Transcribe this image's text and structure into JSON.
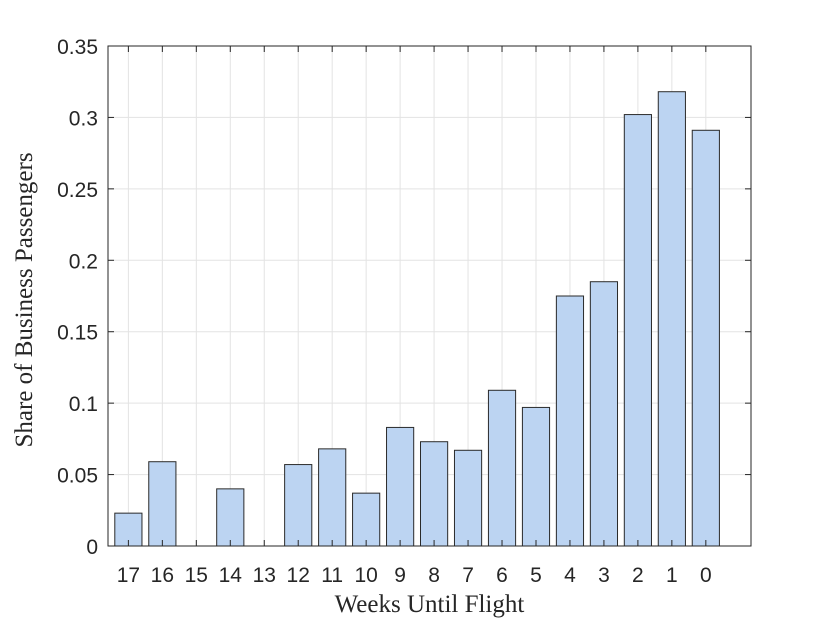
{
  "chart_data": {
    "type": "bar",
    "title": "",
    "xlabel": "Weeks Until Flight",
    "ylabel": "Share of Business Passengers",
    "categories": [
      "17",
      "16",
      "15",
      "14",
      "13",
      "12",
      "11",
      "10",
      "9",
      "8",
      "7",
      "6",
      "5",
      "4",
      "3",
      "2",
      "1",
      "0"
    ],
    "values": [
      0.023,
      0.059,
      0,
      0.04,
      0,
      0.057,
      0.068,
      0.037,
      0.083,
      0.073,
      0.067,
      0.109,
      0.097,
      0.175,
      0.185,
      0.302,
      0.318,
      0.291
    ],
    "ylim": [
      0,
      0.35
    ],
    "yticks": [
      0,
      0.05,
      0.1,
      0.15,
      0.2,
      0.25,
      0.3,
      0.35
    ],
    "ytick_labels": [
      "0",
      "0.05",
      "0.1",
      "0.15",
      "0.2",
      "0.25",
      "0.3",
      "0.35"
    ],
    "grid": true,
    "bar_color": "#bcd4f2",
    "edge_color": "#2a2a2a"
  }
}
